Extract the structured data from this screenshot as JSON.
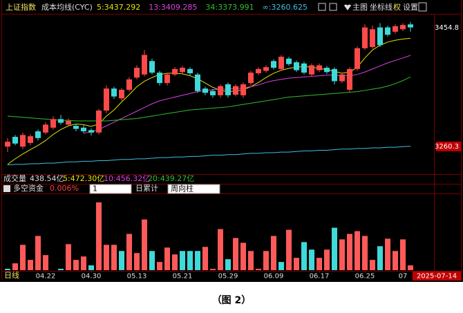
{
  "header": {
    "index_name": "上证指数",
    "indicator": "成本均线(CYC)",
    "buttons": [
      "主图",
      "坐标线",
      "权",
      "设置"
    ]
  },
  "volume": {
    "label": "成交量",
    "value": "438.54亿",
    "ma": [
      "5:472.30亿",
      "10:456.32亿",
      "20:439.27亿"
    ]
  },
  "fund_panel": {
    "title": "多空资金",
    "value": "0.006%",
    "period": "1",
    "mode": "日累计",
    "style": "周向柱"
  },
  "footer": {
    "period": "日线",
    "date": "2025-07-14"
  },
  "caption": "（图 2）",
  "chart_data": [
    {
      "type": "candlestick",
      "up_color": "#ff4a4a",
      "down_color": "#3fd9d9",
      "open": [
        3260,
        3276,
        3260,
        3266,
        3285,
        3283,
        3291,
        3305,
        3296,
        3294,
        3291,
        3287,
        3283,
        3319,
        3355,
        3339,
        3353,
        3373,
        3378,
        3400,
        3381,
        3364,
        3378,
        3382,
        3387,
        3378,
        3355,
        3351,
        3344,
        3362,
        3345,
        3344,
        3364,
        3380,
        3384,
        3400,
        3387,
        3404,
        3398,
        3396,
        3378,
        3385,
        3389,
        3387,
        3367,
        3353,
        3387,
        3421,
        3423,
        3455,
        3455,
        3448,
        3452,
        3460
      ],
      "high": [
        3274,
        3279,
        3283,
        3280,
        3288,
        3300,
        3310,
        3312,
        3306,
        3297,
        3295,
        3290,
        3322,
        3360,
        3358,
        3356,
        3374,
        3393,
        3418,
        3404,
        3384,
        3381,
        3390,
        3392,
        3390,
        3381,
        3358,
        3354,
        3362,
        3365,
        3362,
        3365,
        3384,
        3390,
        3393,
        3403,
        3410,
        3407,
        3401,
        3399,
        3396,
        3396,
        3392,
        3390,
        3381,
        3390,
        3424,
        3460,
        3458,
        3462,
        3458,
        3460,
        3462,
        3464
      ],
      "low": [
        3251,
        3262,
        3256,
        3262,
        3270,
        3280,
        3288,
        3296,
        3293,
        3285,
        3282,
        3278,
        3280,
        3315,
        3338,
        3335,
        3350,
        3370,
        3375,
        3378,
        3360,
        3360,
        3375,
        3380,
        3377,
        3348,
        3344,
        3340,
        3340,
        3340,
        3342,
        3340,
        3360,
        3377,
        3381,
        3386,
        3384,
        3392,
        3382,
        3378,
        3375,
        3382,
        3379,
        3362,
        3364,
        3350,
        3384,
        3418,
        3420,
        3423,
        3440,
        3445,
        3449,
        3448
      ],
      "close": [
        3268,
        3265,
        3279,
        3277,
        3274,
        3296,
        3305,
        3299,
        3302,
        3289,
        3285,
        3283,
        3319,
        3355,
        3342,
        3353,
        3370,
        3389,
        3410,
        3381,
        3364,
        3378,
        3387,
        3389,
        3380,
        3351,
        3348,
        3344,
        3359,
        3344,
        3359,
        3362,
        3381,
        3387,
        3390,
        3389,
        3407,
        3395,
        3385,
        3381,
        3393,
        3393,
        3382,
        3367,
        3378,
        3387,
        3421,
        3455,
        3452,
        3426,
        3443,
        3457,
        3459,
        3455
      ],
      "series": [
        {
          "name": "5:3437.292",
          "color": "#e6e600",
          "values": [
            3231,
            3240,
            3248,
            3255,
            3262,
            3270,
            3280,
            3288,
            3294,
            3297,
            3296,
            3293,
            3297,
            3310,
            3320,
            3333,
            3345,
            3358,
            3367,
            3373,
            3378,
            3380,
            3380,
            3379,
            3376,
            3371,
            3364,
            3357,
            3352,
            3350,
            3351,
            3353,
            3358,
            3365,
            3373,
            3380,
            3385,
            3388,
            3390,
            3391,
            3390,
            3388,
            3386,
            3383,
            3380,
            3382,
            3390,
            3405,
            3418,
            3426,
            3431,
            3434,
            3436,
            3437.292
          ]
        },
        {
          "name": "13:3409.285",
          "color": "#e040e0",
          "values": [
            null,
            null,
            null,
            null,
            null,
            null,
            null,
            null,
            null,
            null,
            3282,
            3284,
            3288,
            3294,
            3300,
            3306,
            3312,
            3318,
            3324,
            3330,
            3335,
            3338,
            3341,
            3344,
            3347,
            3350,
            3352,
            3353,
            3354,
            3354,
            3355,
            3356,
            3358,
            3361,
            3365,
            3368,
            3370,
            3372,
            3373,
            3374,
            3375,
            3376,
            3377,
            3377,
            3376,
            3376,
            3378,
            3382,
            3387,
            3392,
            3397,
            3401,
            3405,
            3409.285
          ]
        },
        {
          "name": "34:3373.991",
          "color": "#30c030",
          "values": [
            3310,
            3309,
            3308,
            3307,
            3306,
            3305,
            3304,
            3303,
            3303,
            3302,
            3302,
            3302,
            3302,
            3302,
            3303,
            3304,
            3305,
            3306,
            3308,
            3310,
            3312,
            3314,
            3316,
            3318,
            3320,
            3321,
            3322,
            3323,
            3324,
            3325,
            3327,
            3329,
            3331,
            3333,
            3335,
            3337,
            3339,
            3341,
            3342,
            3343,
            3344,
            3345,
            3346,
            3347,
            3348,
            3349,
            3350,
            3352,
            3354,
            3356,
            3359,
            3363,
            3368,
            3373.991
          ]
        },
        {
          "name": "∞:3260.625",
          "color": "#40c0e0",
          "values": [
            3230,
            3231,
            3231,
            3232,
            3232,
            3233,
            3233,
            3234,
            3235,
            3235,
            3236,
            3236,
            3237,
            3237,
            3238,
            3239,
            3239,
            3240,
            3240,
            3241,
            3242,
            3242,
            3243,
            3243,
            3244,
            3244,
            3245,
            3246,
            3246,
            3247,
            3247,
            3248,
            3249,
            3249,
            3250,
            3250,
            3251,
            3251,
            3252,
            3253,
            3253,
            3254,
            3254,
            3255,
            3256,
            3256,
            3257,
            3257,
            3258,
            3258,
            3259,
            3259,
            3260,
            3260.625
          ]
        }
      ],
      "ylim": [
        3215,
        3475
      ],
      "yticks": [
        3454.8,
        3260.3
      ]
    },
    {
      "type": "bar",
      "categories": [
        null,
        null,
        null,
        null,
        null,
        "04.22",
        null,
        null,
        null,
        null,
        null,
        "04.30",
        null,
        null,
        null,
        null,
        null,
        "05.13",
        null,
        null,
        null,
        null,
        null,
        "05.21",
        null,
        null,
        null,
        null,
        null,
        "05.29",
        null,
        null,
        null,
        null,
        null,
        "06.09",
        null,
        null,
        null,
        null,
        null,
        "06.17",
        null,
        null,
        null,
        null,
        null,
        "06.25",
        null,
        null,
        null,
        null,
        "07",
        null
      ],
      "values": [
        2,
        10,
        37,
        15,
        50,
        22,
        0,
        2,
        38,
        15,
        20,
        7,
        99,
        37,
        37,
        28,
        53,
        25,
        74,
        28,
        12,
        33,
        23,
        28,
        28,
        28,
        34,
        2,
        60,
        16,
        47,
        40,
        28,
        2,
        28,
        50,
        12,
        59,
        18,
        41,
        30,
        18,
        30,
        62,
        45,
        53,
        57,
        50,
        15,
        35,
        46,
        28,
        45,
        7
      ],
      "colors": [
        "#3fd9d9",
        "#ff5a5a",
        "#ff5a5a",
        "#ff5a5a",
        "#ff5a5a",
        "#ff5a5a",
        "#ff5a5a",
        "#3fd9d9",
        "#ff5a5a",
        "#ff5a5a",
        "#ff5a5a",
        "#3fd9d9",
        "#ff5a5a",
        "#ff5a5a",
        "#ff5a5a",
        "#3fd9d9",
        "#ff5a5a",
        "#ff5a5a",
        "#ff5a5a",
        "#3fd9d9",
        "#ff5a5a",
        "#ff5a5a",
        "#ff5a5a",
        "#3fd9d9",
        "#3fd9d9",
        "#3fd9d9",
        "#ff5a5a",
        "#ff5a5a",
        "#ff5a5a",
        "#3fd9d9",
        "#ff5a5a",
        "#ff5a5a",
        "#ff5a5a",
        "#ff5a5a",
        "#ff5a5a",
        "#ff5a5a",
        "#3fd9d9",
        "#ff5a5a",
        "#ff5a5a",
        "#3fd9d9",
        "#3fd9d9",
        "#ff5a5a",
        "#ff5a5a",
        "#3fd9d9",
        "#ff5a5a",
        "#ff5a5a",
        "#ff5a5a",
        "#ff5a5a",
        "#ff5a5a",
        "#3fd9d9",
        "#ff5a5a",
        "#ff5a5a",
        "#ff5a5a",
        "#ff5a5a"
      ],
      "ylim": [
        0,
        110
      ]
    }
  ]
}
